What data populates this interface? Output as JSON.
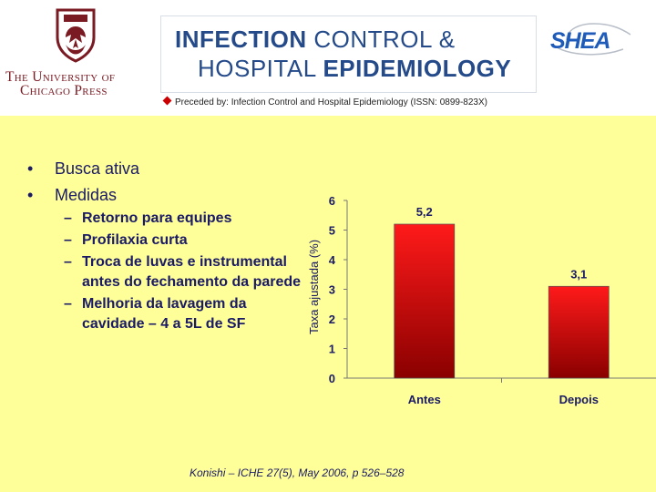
{
  "header": {
    "publisher_line1": "The University of",
    "publisher_line2": "Chicago Press",
    "journal_line1_a": "INFECTION",
    "journal_line1_b": "CONTROL &",
    "journal_line2_a": "HOSPITAL",
    "journal_line2_b": "EPIDEMIOLOGY",
    "society_logo_text": "SHEA",
    "preceded_by": "Preceded by: Infection Control and Hospital Epidemiology (ISSN: 0899-823X)",
    "colors": {
      "journal_blue": "#244a8a",
      "crest_maroon": "#7a1a22",
      "diamond": "#cc0000"
    }
  },
  "slide": {
    "background": "#ffff99",
    "bullets": [
      "Busca ativa",
      "Medidas"
    ],
    "sub_bullets": [
      "Retorno para equipes",
      "Profilaxia curta",
      "Troca de luvas e instrumental antes do fechamento da parede",
      "Melhoria da lavagem da cavidade – 4 a 5L de SF"
    ],
    "citation": "Konishi – ICHE 27(5), May 2006, p 526–528"
  },
  "chart_data": {
    "type": "bar",
    "categories": [
      "Antes",
      "Depois"
    ],
    "values": [
      5.2,
      3.1
    ],
    "data_labels": [
      "5,2",
      "3,1"
    ],
    "ylabel": "Taxa ajustada (%)",
    "ylim": [
      0,
      6
    ],
    "yticks": [
      0,
      1,
      2,
      3,
      4,
      5,
      6
    ],
    "grid": false,
    "legend": "none",
    "bar_gradient": [
      "#ff1a1a",
      "#8a0000"
    ]
  }
}
